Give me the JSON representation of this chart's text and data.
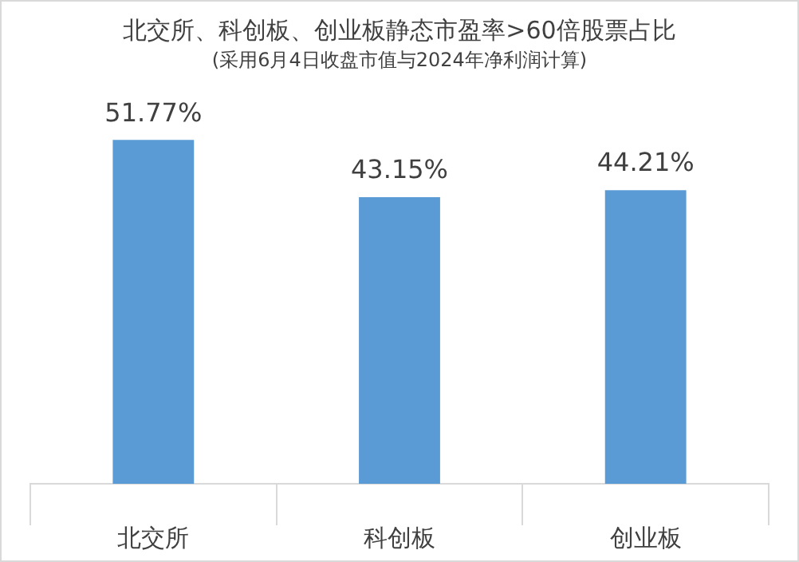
{
  "chart_data": {
    "type": "bar",
    "title": "北交所、科创板、创业板静态市盈率>60倍股票占比",
    "subtitle": "(采用6月4日收盘市值与2024年净利润计算)",
    "categories": [
      "北交所",
      "科创板",
      "创业板"
    ],
    "values": [
      51.77,
      43.15,
      44.21
    ],
    "value_labels": [
      "51.77%",
      "43.15%",
      "44.21%"
    ],
    "color": "#5b9bd5",
    "tick_labels": "x"
  }
}
